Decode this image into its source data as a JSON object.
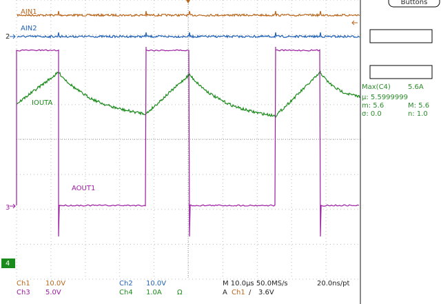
{
  "buttons": "Buttons",
  "traces": {
    "ain1": "AIN1",
    "ain2": "AIN2",
    "iouta": "IOUTA",
    "aout1": "AOUT1"
  },
  "markers": [
    "2",
    "3",
    "4"
  ],
  "measurement": {
    "title": "Max(C4)",
    "value": "5.6A",
    "mean": "µ: 5.5999999",
    "min": "m: 5.6",
    "max": "M: 5.6",
    "sigma": "σ: 0.0",
    "n": "n: 1.0"
  },
  "status": {
    "ch1": "Ch1",
    "ch1_scale": "10.0V",
    "ch2": "Ch2",
    "ch2_scale": "10.0V",
    "ch3": "Ch3",
    "ch3_scale": "5.0V",
    "ch4": "Ch4",
    "ch4_scale": "1.0A",
    "ch4_imp": "Ω",
    "timebase": "M 10.0µs 50.0MS/s",
    "resolution": "20.0ns/pt",
    "trig_mode": "A",
    "trig_src": "Ch1",
    "trig_slope": "/",
    "trig_level": "3.6V"
  }
}
